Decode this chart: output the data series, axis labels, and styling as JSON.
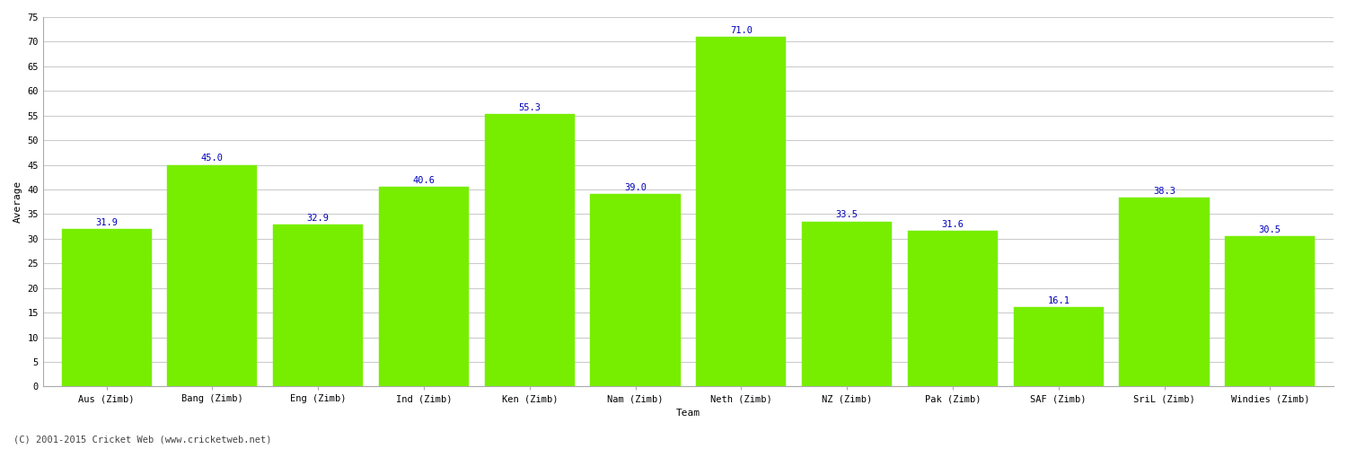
{
  "categories": [
    "Aus (Zimb)",
    "Bang (Zimb)",
    "Eng (Zimb)",
    "Ind (Zimb)",
    "Ken (Zimb)",
    "Nam (Zimb)",
    "Neth (Zimb)",
    "NZ (Zimb)",
    "Pak (Zimb)",
    "SAF (Zimb)",
    "SriL (Zimb)",
    "Windies (Zimb)"
  ],
  "values": [
    31.9,
    45.0,
    32.9,
    40.6,
    55.3,
    39.0,
    71.0,
    33.5,
    31.6,
    16.1,
    38.3,
    30.5
  ],
  "bar_color": "#77ee00",
  "bar_edge_color": "#77ee00",
  "label_color": "#0000bb",
  "ylabel": "Average",
  "xlabel": "Team",
  "ylim": [
    0,
    75
  ],
  "yticks": [
    0,
    5,
    10,
    15,
    20,
    25,
    30,
    35,
    40,
    45,
    50,
    55,
    60,
    65,
    70,
    75
  ],
  "grid_color": "#cccccc",
  "background_color": "#ffffff",
  "footer": "(C) 2001-2015 Cricket Web (www.cricketweb.net)",
  "label_fontsize": 7.5,
  "axis_label_fontsize": 8,
  "tick_fontsize": 7.5,
  "footer_fontsize": 7.5,
  "bar_width": 0.85
}
